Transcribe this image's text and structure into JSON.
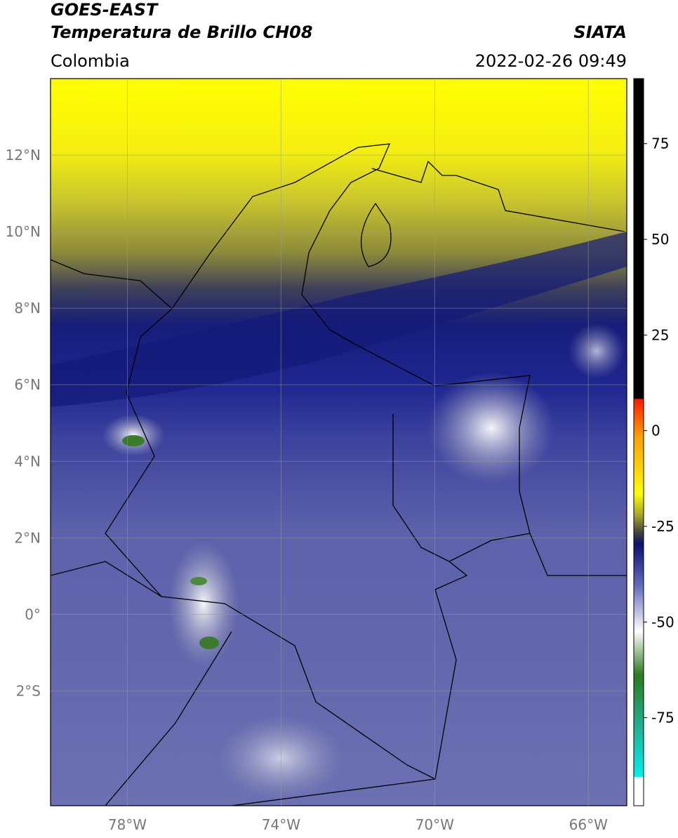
{
  "header": {
    "source": "GOES-EAST",
    "title": "Temperatura de Brillo CH08",
    "institution": "SIATA",
    "region": "Colombia",
    "datetime": "2022-02-26 09:49"
  },
  "map": {
    "xlim": [
      -80,
      -65
    ],
    "ylim": [
      -5,
      14
    ],
    "xticks": [
      {
        "value": -78,
        "label": "78°W"
      },
      {
        "value": -74,
        "label": "74°W"
      },
      {
        "value": -70,
        "label": "70°W"
      },
      {
        "value": -66,
        "label": "66°W"
      }
    ],
    "yticks": [
      {
        "value": 12,
        "label": "12°N"
      },
      {
        "value": 10,
        "label": "10°N"
      },
      {
        "value": 8,
        "label": "8°N"
      },
      {
        "value": 6,
        "label": "6°N"
      },
      {
        "value": 4,
        "label": "4°N"
      },
      {
        "value": 2,
        "label": "2°N"
      },
      {
        "value": 0,
        "label": "0°"
      },
      {
        "value": -2,
        "label": "2°S"
      }
    ],
    "grid": true
  },
  "colorbar": {
    "lim": [
      -98,
      92
    ],
    "ticks": [
      75,
      50,
      25,
      0,
      -25,
      -50,
      -75
    ]
  }
}
